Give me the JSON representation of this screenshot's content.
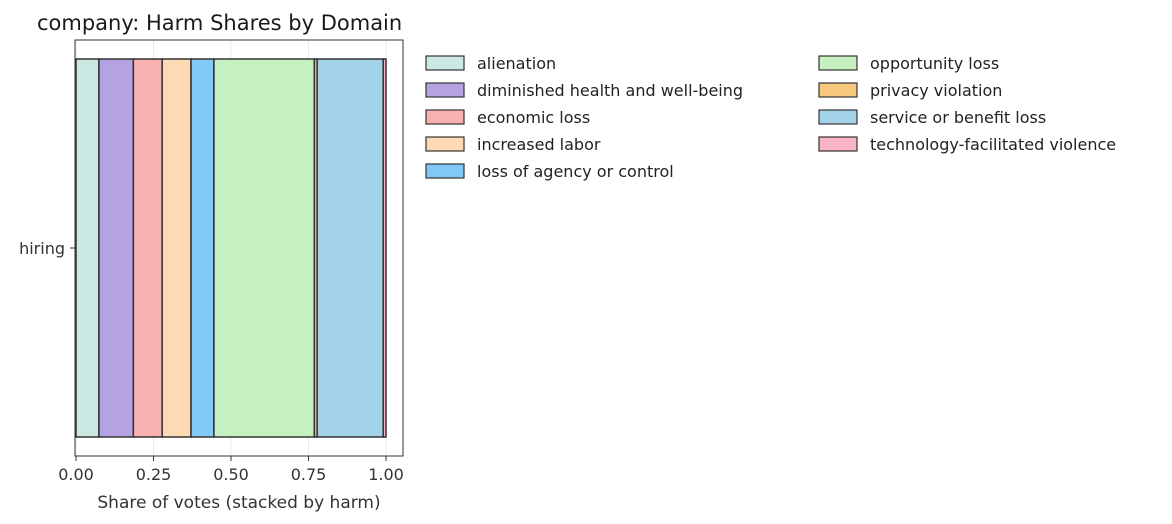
{
  "chart_data": {
    "type": "bar",
    "orientation": "horizontal",
    "stacked": true,
    "title": "company: Harm Shares by Domain",
    "xlabel": "Share of votes (stacked by harm)",
    "ylabel": "",
    "xlim": [
      0,
      1.05
    ],
    "x_ticks": [
      0.0,
      0.25,
      0.5,
      0.75,
      1.0
    ],
    "x_tick_labels": [
      "0.00",
      "0.25",
      "0.50",
      "0.75",
      "1.00"
    ],
    "categories": [
      "hiring"
    ],
    "grid": "vertical",
    "legend_position": "outside-right",
    "series": [
      {
        "name": "alienation",
        "values": [
          0.074
        ],
        "color": "#cce8e2"
      },
      {
        "name": "diminished health and well-being",
        "values": [
          0.111
        ],
        "color": "#b4a3e0"
      },
      {
        "name": "economic loss",
        "values": [
          0.093
        ],
        "color": "#f9b0b0"
      },
      {
        "name": "increased labor",
        "values": [
          0.093
        ],
        "color": "#fed9b6"
      },
      {
        "name": "loss of agency or control",
        "values": [
          0.074
        ],
        "color": "#82c8f7"
      },
      {
        "name": "opportunity loss",
        "values": [
          0.324
        ],
        "color": "#c6f0c0"
      },
      {
        "name": "privacy violation",
        "values": [
          0.009
        ],
        "color": "#f7c97e"
      },
      {
        "name": "service or benefit loss",
        "values": [
          0.213
        ],
        "color": "#a3d3ea"
      },
      {
        "name": "technology-facilitated violence",
        "values": [
          0.009
        ],
        "color": "#f9b5c5"
      }
    ]
  }
}
